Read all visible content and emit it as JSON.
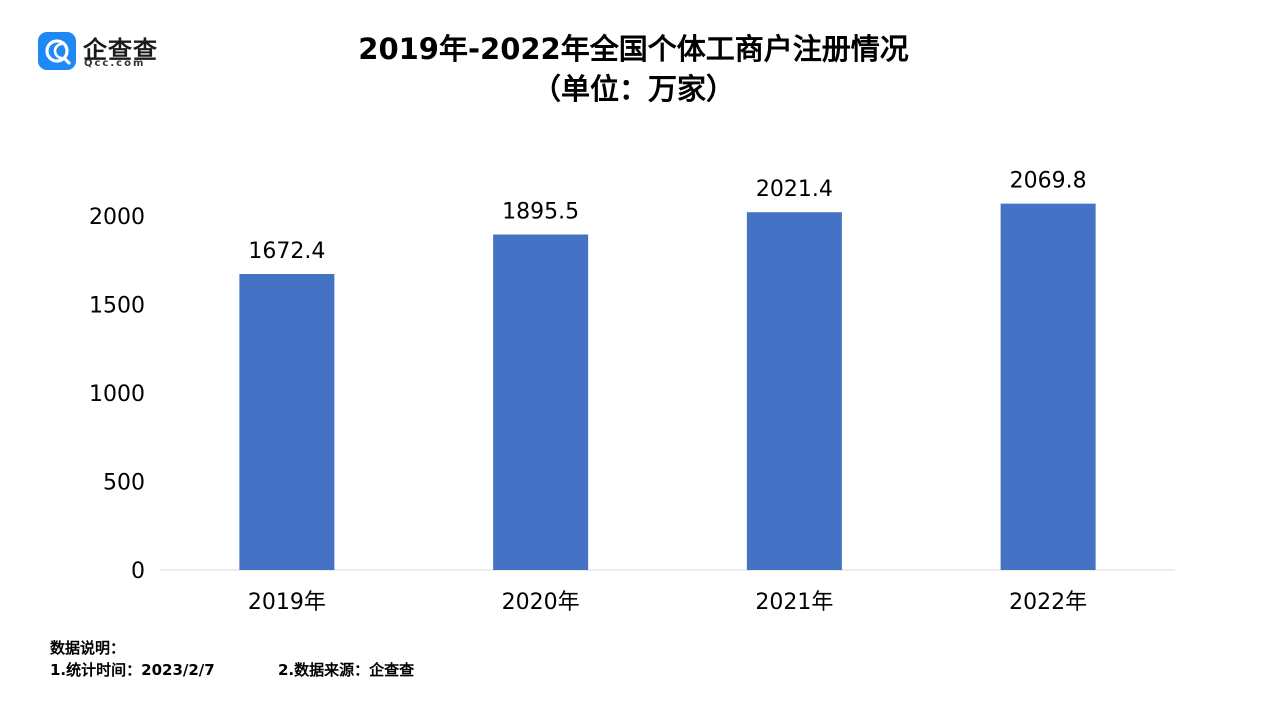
{
  "logo": {
    "name": "企查查",
    "domain": "Qcc.com",
    "icon": "qcc-logo-icon",
    "color": "#1e88f5"
  },
  "title_line1": "2019年-2022年全国个体工商户注册情况",
  "title_line2": "（单位：万家）",
  "chart_data": {
    "type": "bar",
    "categories": [
      "2019年",
      "2020年",
      "2021年",
      "2022年"
    ],
    "values": [
      1672.4,
      1895.5,
      2021.4,
      2069.8
    ],
    "value_labels": [
      "1672.4",
      "1895.5",
      "2021.4",
      "2069.8"
    ],
    "yticks": [
      "0",
      "500",
      "1000",
      "1500",
      "2000"
    ],
    "ylim": [
      0,
      2000
    ],
    "grid": false,
    "legend": "none",
    "bar_color": "#4472c4"
  },
  "notes": {
    "heading": "数据说明：",
    "time": "1.统计时间：2023/2/7",
    "source": "2.数据来源：企查查"
  }
}
